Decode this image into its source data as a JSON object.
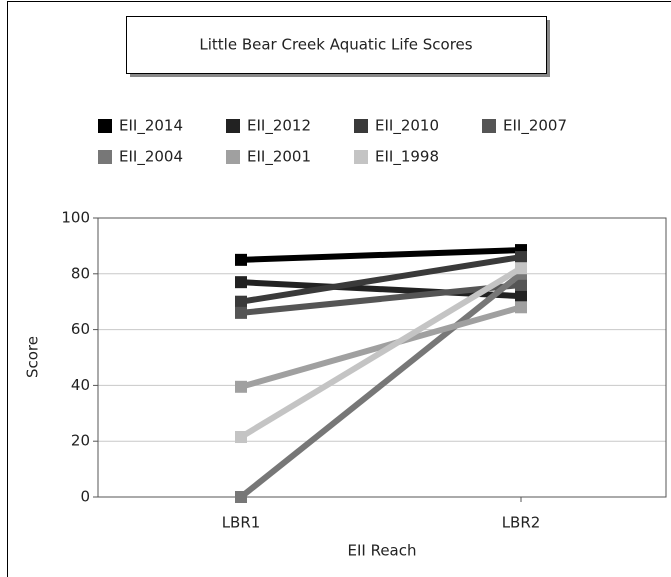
{
  "chart_data": {
    "type": "line",
    "title": "Little Bear Creek Aquatic Life Scores",
    "x_label": "EII Reach",
    "y_label": "Score",
    "categories": [
      "LBR1",
      "LBR2"
    ],
    "series": [
      {
        "name": "EII_2014",
        "color": "#000000",
        "values": [
          85,
          88.5
        ]
      },
      {
        "name": "EII_2012",
        "color": "#222222",
        "values": [
          77,
          72
        ]
      },
      {
        "name": "EII_2010",
        "color": "#3a3a3a",
        "values": [
          70,
          86
        ]
      },
      {
        "name": "EII_2007",
        "color": "#555555",
        "values": [
          66,
          76
        ]
      },
      {
        "name": "EII_2004",
        "color": "#777777",
        "values": [
          0,
          80
        ]
      },
      {
        "name": "EII_2001",
        "color": "#a0a0a0",
        "values": [
          39.5,
          68
        ]
      },
      {
        "name": "EII_1998",
        "color": "#c4c4c4",
        "values": [
          21.5,
          82
        ]
      }
    ],
    "ylim": [
      0,
      100
    ],
    "yticks": [
      0,
      20,
      40,
      60,
      80,
      100
    ],
    "grid": true
  }
}
